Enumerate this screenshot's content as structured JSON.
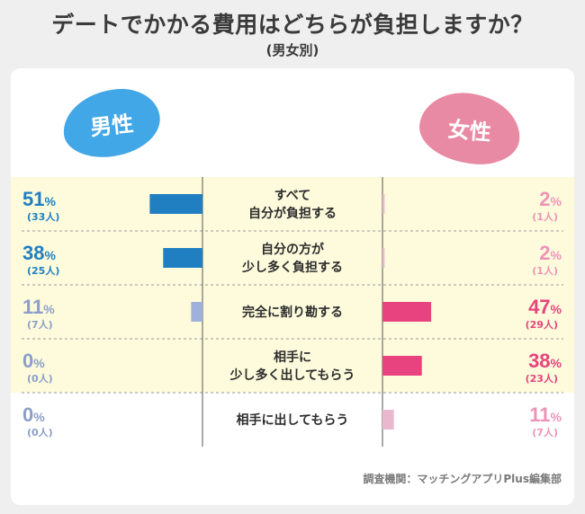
{
  "title": "デートでかかる費用はどちらが負担しますか？",
  "subtitle": "(男女別)",
  "labels": {
    "male": "男性",
    "female": "女性"
  },
  "source": "調査機関：マッチングアプリPlus編集部",
  "colors": {
    "male_dark": "#1f7fc1",
    "male_light": "#9fb1d9",
    "female_dark": "#e8437e",
    "female_light": "#e9b8cf",
    "male_text_dark": "#1f7fc1",
    "male_text_light": "#8b9ec8",
    "female_text_dark": "#e8437e",
    "female_text_light": "#ee93b8",
    "highlight": "#fdfbdc"
  },
  "chart_data": {
    "type": "bar",
    "categories": [
      [
        "すべて",
        "自分が負担する"
      ],
      [
        "自分の方が",
        "少し多く負担する"
      ],
      [
        "完全に割り勘する"
      ],
      [
        "相手に",
        "少し多く出してもらう"
      ],
      [
        "相手に出してもらう"
      ]
    ],
    "series": [
      {
        "name": "男性",
        "values": [
          51,
          38,
          11,
          0,
          0
        ],
        "counts": [
          "(33人)",
          "(25人)",
          "(7人)",
          "(0人)",
          "(0人)"
        ]
      },
      {
        "name": "女性",
        "values": [
          2,
          2,
          47,
          38,
          11
        ],
        "counts": [
          "(1人)",
          "(1人)",
          "(29人)",
          "(23人)",
          "(7人)"
        ]
      }
    ],
    "percent_sign": "%",
    "highlighted_rows": [
      0,
      1,
      2,
      3
    ],
    "ylim": [
      0,
      100
    ]
  }
}
